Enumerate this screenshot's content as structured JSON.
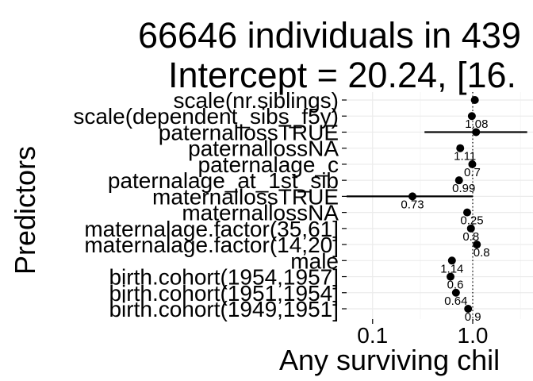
{
  "chart_data": {
    "type": "forest",
    "title_lines": [
      "66646 individuals in 439",
      "Intercept = 20.24, [16."
    ],
    "xlabel": "Any surviving chil",
    "ylabel": "Predictors",
    "x_scale": "log10",
    "xlim": [
      0.055,
      4.0
    ],
    "x_ticks": [
      {
        "value": 0.1,
        "label": "0.1"
      },
      {
        "value": 1.0,
        "label": "1.0"
      }
    ],
    "reference_line": 1.0,
    "predictors": [
      {
        "name": "scale(nr.siblings)",
        "estimate": 1.05,
        "ci": [
          1.0,
          1.1
        ],
        "label": ""
      },
      {
        "name": "scale(dependent_sibs_f5y)",
        "estimate": 0.98,
        "ci": [
          0.94,
          1.02
        ],
        "label": "1.08"
      },
      {
        "name": "paternallossTRUE",
        "estimate": 1.08,
        "ci": [
          0.33,
          3.5
        ],
        "label": ""
      },
      {
        "name": "paternallossNA",
        "estimate": 0.75,
        "ci": [
          0.7,
          0.8
        ],
        "label": "1.11"
      },
      {
        "name": "paternalage_c",
        "estimate": 0.99,
        "ci": [
          0.96,
          1.02
        ],
        "label": "0.7"
      },
      {
        "name": "paternalage_at_1st_sib",
        "estimate": 0.73,
        "ci": [
          0.7,
          0.76
        ],
        "label": "0.99"
      },
      {
        "name": "maternallossTRUE",
        "estimate": 0.25,
        "ci": [
          0.055,
          1.0
        ],
        "label": "0.73"
      },
      {
        "name": "maternallossNA",
        "estimate": 0.88,
        "ci": [
          0.84,
          0.92
        ],
        "label": "0.25"
      },
      {
        "name": "maternalage.factor(35,61]",
        "estimate": 0.96,
        "ci": [
          0.9,
          1.02
        ],
        "label": "0.8"
      },
      {
        "name": "maternalage.factor(14,20]",
        "estimate": 1.1,
        "ci": [
          1.04,
          1.16
        ],
        "label": "0.8"
      },
      {
        "name": "male",
        "estimate": 0.62,
        "ci": [
          0.59,
          0.65
        ],
        "label": "1.14"
      },
      {
        "name": "birth.cohort(1954,1957]",
        "estimate": 0.6,
        "ci": [
          0.56,
          0.64
        ],
        "label": "0.6"
      },
      {
        "name": "birth.cohort(1951,1954]",
        "estimate": 0.68,
        "ci": [
          0.64,
          0.72
        ],
        "label": "0.64"
      },
      {
        "name": "birth.cohort(1949,1951]",
        "estimate": 0.9,
        "ci": [
          0.86,
          0.94
        ],
        "label": "0.9"
      }
    ],
    "point_color": "#000000",
    "grid": true
  }
}
